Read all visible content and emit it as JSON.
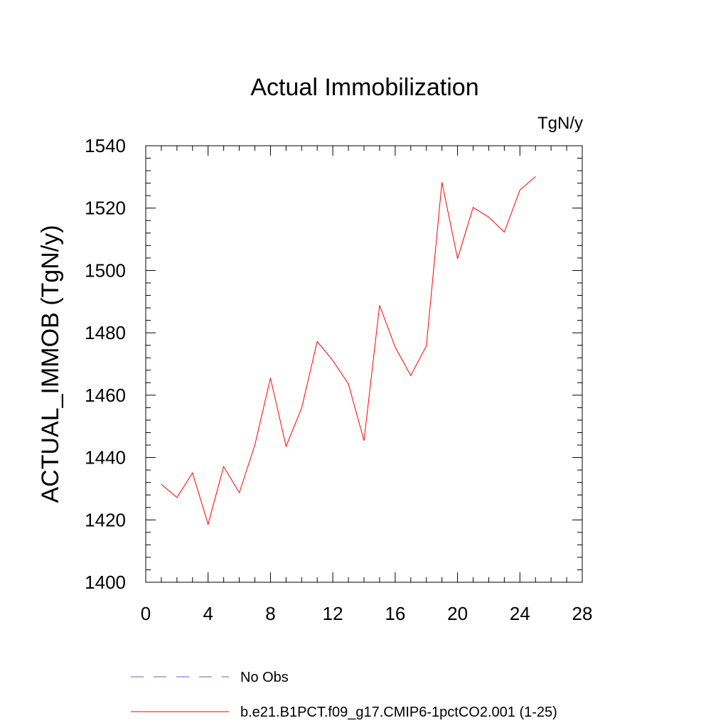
{
  "chart_data": {
    "type": "line",
    "title": "Actual Immobilization",
    "units_label": "TgN/y",
    "ylabel": "ACTUAL_IMMOB  (TgN/y)",
    "xlabel": "",
    "xlim": [
      0,
      28
    ],
    "ylim": [
      1400,
      1540
    ],
    "x_major_ticks": [
      0,
      4,
      8,
      12,
      16,
      20,
      24,
      28
    ],
    "x_tick_labels": [
      "0",
      "4",
      "8",
      "12",
      "16",
      "20",
      "24",
      "28"
    ],
    "x_minor_step": 1,
    "y_major_ticks": [
      1400,
      1420,
      1440,
      1460,
      1480,
      1500,
      1520,
      1540
    ],
    "y_tick_labels": [
      "1400",
      "1420",
      "1440",
      "1460",
      "1480",
      "1500",
      "1520",
      "1540"
    ],
    "y_minor_step": 4,
    "grid": false,
    "legend_position": "bottom",
    "series": [
      {
        "name": "No Obs",
        "color": "#6a5acd",
        "dash": "dashed",
        "x": [],
        "y": []
      },
      {
        "name": "b.e21.B1PCT.f09_g17.CMIP6-1pctCO2.001 (1-25)",
        "color": "#ff0000",
        "dash": "solid",
        "x": [
          1,
          2,
          3,
          4,
          5,
          6,
          7,
          8,
          9,
          10,
          11,
          12,
          13,
          14,
          15,
          16,
          17,
          18,
          19,
          20,
          21,
          22,
          23,
          24,
          25
        ],
        "y": [
          1431.4,
          1427.2,
          1435.1,
          1418.6,
          1437.1,
          1428.7,
          1444.0,
          1465.5,
          1443.6,
          1455.9,
          1477.2,
          1471.1,
          1463.6,
          1445.4,
          1488.8,
          1475.4,
          1466.3,
          1475.8,
          1528.3,
          1503.8,
          1520.2,
          1517.1,
          1512.3,
          1525.8,
          1530.1
        ]
      }
    ]
  }
}
